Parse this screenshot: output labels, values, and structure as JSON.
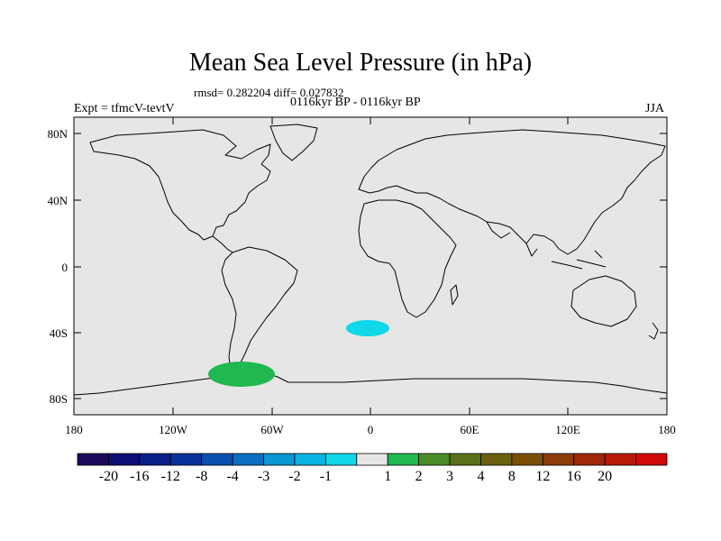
{
  "title": "Mean Sea Level Pressure (in hPa)",
  "stats": "rmsd= 0.282204 diff= 0.027832",
  "period": "0116kyr BP - 0116kyr BP",
  "experiment": "Expt = tfmcV-tevtV",
  "season": "JJA",
  "axes": {
    "y_ticks": [
      "80N",
      "40N",
      "0",
      "40S",
      "80S"
    ],
    "x_ticks": [
      "180",
      "120W",
      "60W",
      "0",
      "60E",
      "120E",
      "180"
    ]
  },
  "colorbar": {
    "colors": [
      "#1a0a5c",
      "#0d0d73",
      "#0a1e8a",
      "#0a3399",
      "#0a4fae",
      "#0a6fc0",
      "#0a96d0",
      "#0ab4e0",
      "#10d8e8",
      "#e6e6e6",
      "#20b850",
      "#4c8c28",
      "#5a7018",
      "#6b6010",
      "#7a5008",
      "#8c3c06",
      "#a02808",
      "#b81808",
      "#d00808"
    ],
    "labels": [
      "-20",
      "-16",
      "-12",
      "-8",
      "-4",
      "-3",
      "-2",
      "-1",
      "1",
      "2",
      "3",
      "4",
      "8",
      "12",
      "16",
      "20"
    ]
  },
  "anomalies": [
    {
      "name": "south-atlantic-negative",
      "color": "#10d8e8",
      "lon": -2,
      "lat": -37
    },
    {
      "name": "amundsen-sea-positive",
      "color": "#20b850",
      "lon": -80,
      "lat": -65
    }
  ],
  "colors": {
    "ocean": "#e6e6e6",
    "coast": "#000000"
  }
}
